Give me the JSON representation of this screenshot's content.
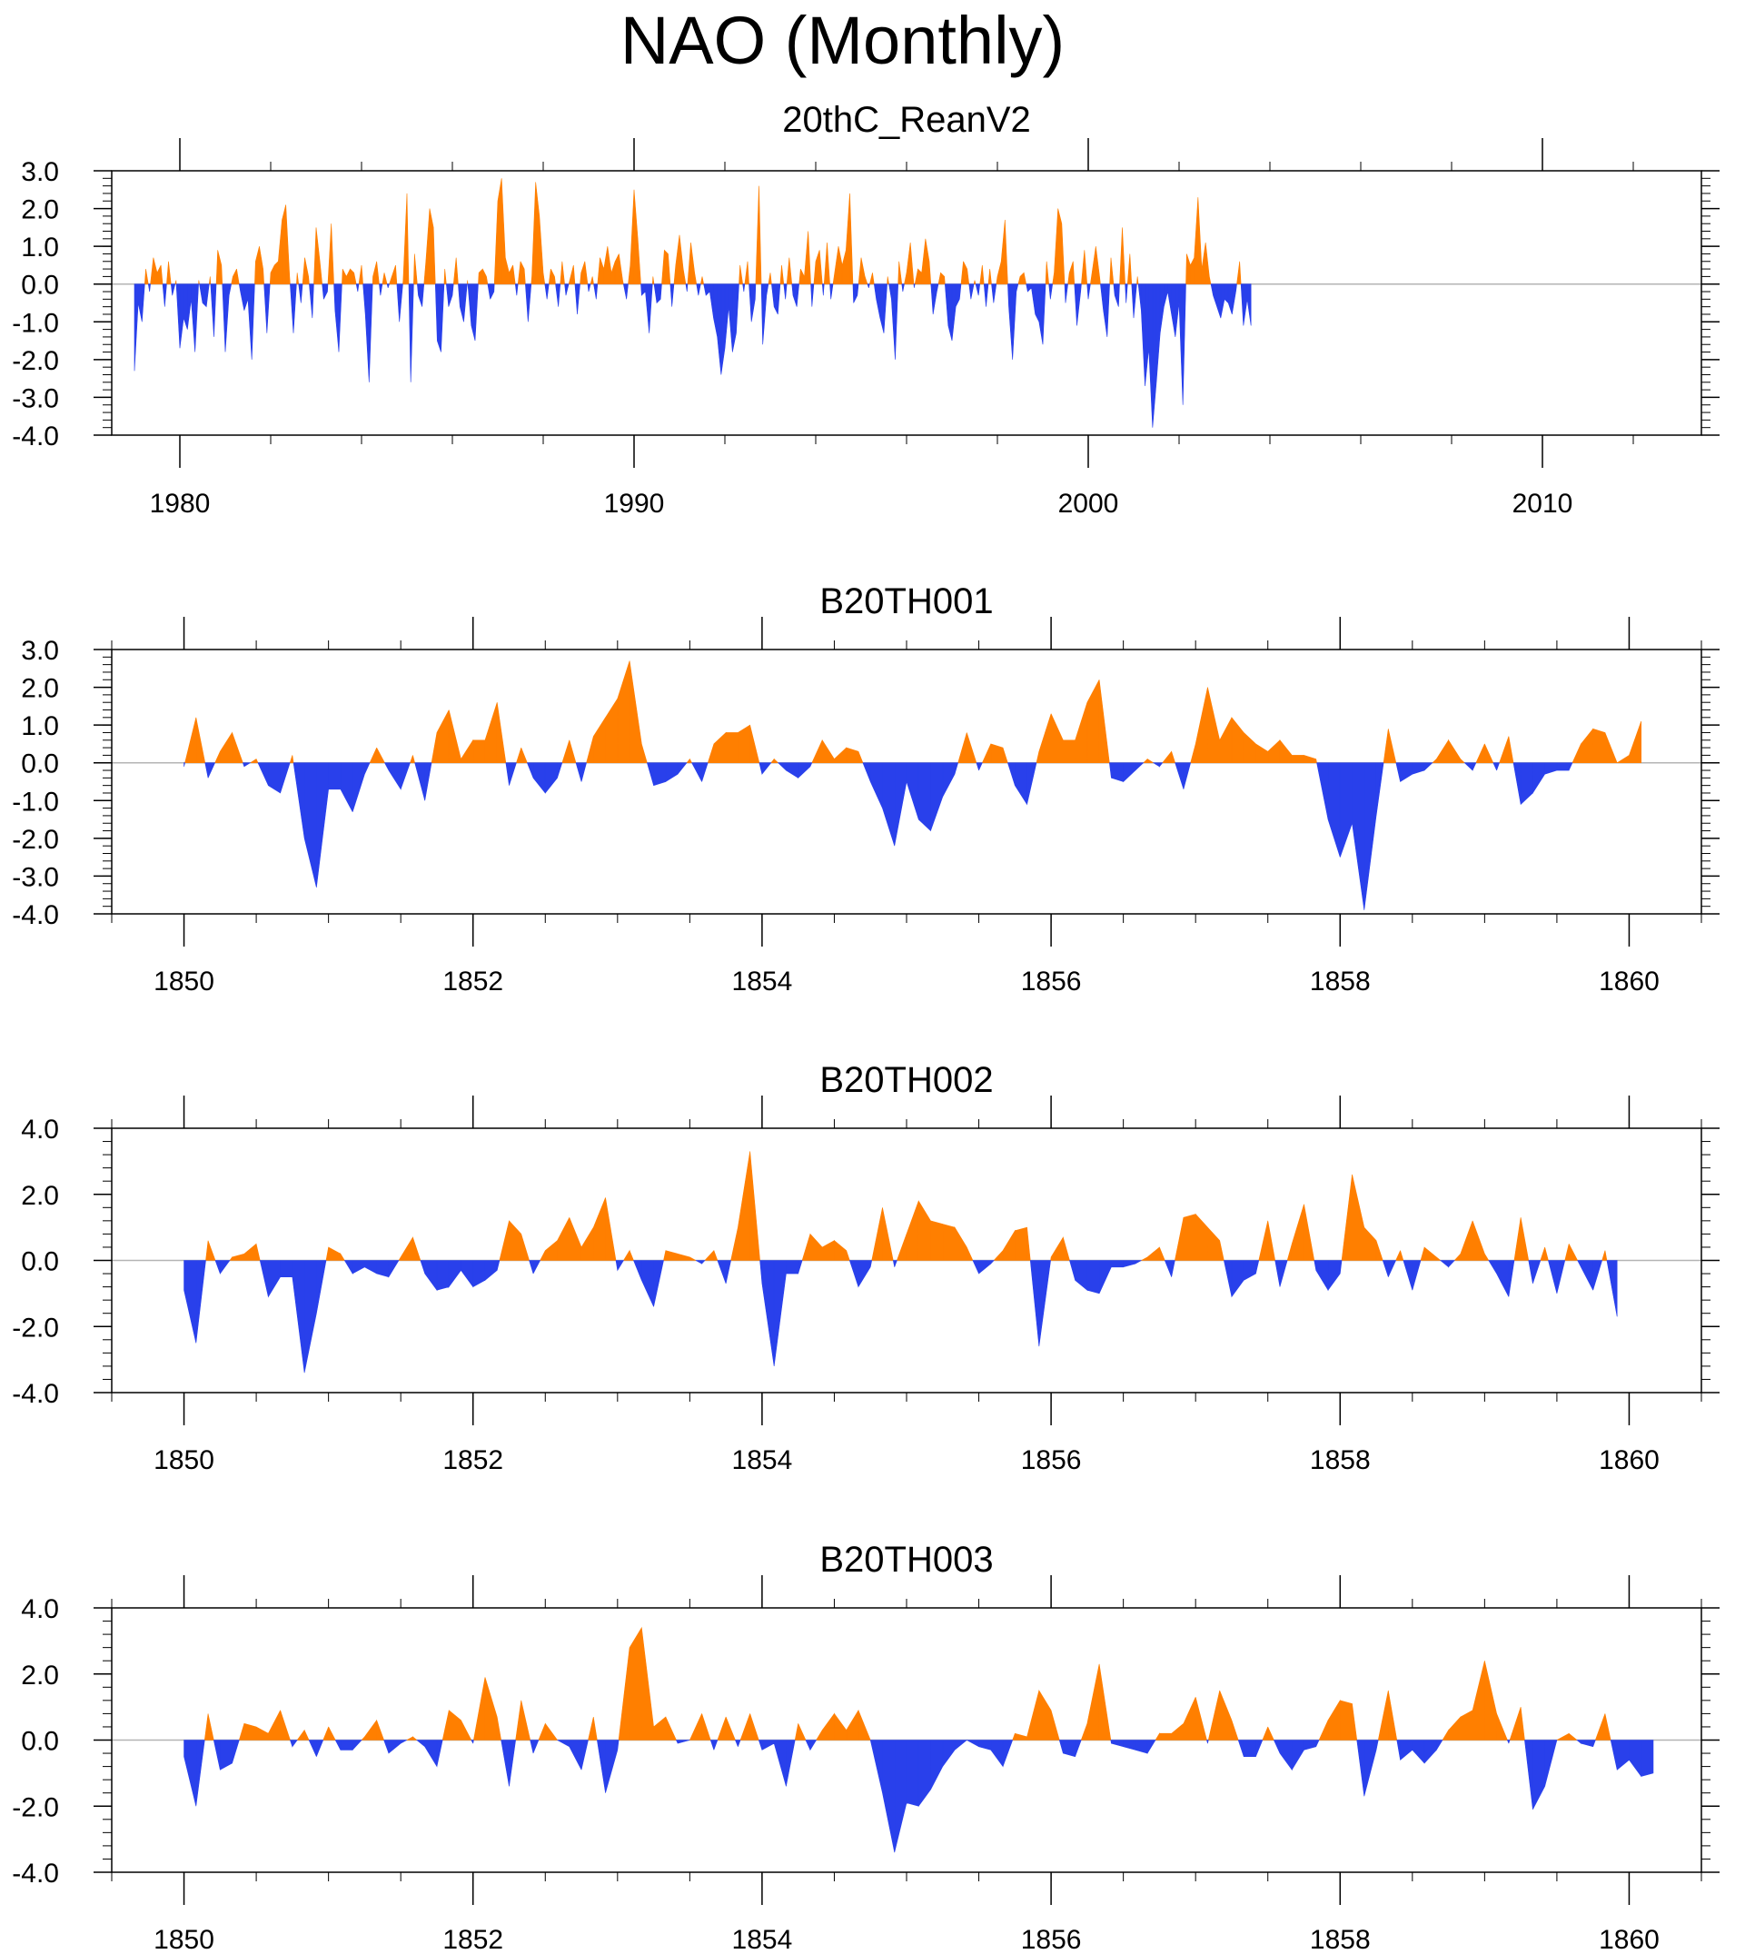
{
  "title": "NAO (Monthly)",
  "colors": {
    "positive": "#ff7f00",
    "negative": "#2940eb",
    "frame": "#000000",
    "zero_line": "#b4b4b4"
  },
  "chart_data": [
    {
      "type": "area",
      "title": "20thC_ReanV2",
      "xlim": [
        1978.5,
        2013.5
      ],
      "ylim": [
        -4,
        3
      ],
      "yticks": [
        3,
        2,
        1,
        0,
        -1,
        -2,
        -3,
        -4
      ],
      "ytick_labels": [
        "3.0",
        "2.0",
        "1.0",
        "0.0",
        "-1.0",
        "-2.0",
        "-3.0",
        "-4.0"
      ],
      "ytick_minor_step": 0.2,
      "xticks": [
        1980,
        1990,
        2000,
        2010
      ],
      "xtick_labels": [
        "1980",
        "1990",
        "2000",
        "2010"
      ],
      "xtick_minor_step": 2,
      "x_start": 1979.0,
      "x_step": 0.0833333,
      "values": [
        -2.3,
        -0.5,
        -1.0,
        0.4,
        -0.2,
        0.7,
        0.3,
        0.5,
        -0.6,
        0.6,
        -0.3,
        0.1,
        -1.7,
        -0.9,
        -1.2,
        -0.4,
        -1.8,
        0.1,
        -0.5,
        -0.6,
        0.2,
        -1.4,
        0.9,
        0.5,
        -1.8,
        -0.3,
        0.2,
        0.4,
        -0.2,
        -0.7,
        -0.4,
        -2.0,
        0.6,
        1.0,
        0.4,
        -1.3,
        0.3,
        0.5,
        0.6,
        1.7,
        2.1,
        0.2,
        -1.3,
        0.3,
        -0.5,
        0.7,
        0.2,
        -0.9,
        1.5,
        0.6,
        -0.4,
        -0.2,
        1.6,
        -0.7,
        -1.8,
        0.4,
        0.2,
        0.4,
        0.3,
        -0.2,
        0.5,
        -0.8,
        -2.6,
        0.2,
        0.6,
        -0.3,
        0.3,
        -0.1,
        0.2,
        0.5,
        -1.0,
        0.1,
        2.4,
        -2.6,
        0.8,
        -0.3,
        -0.6,
        0.6,
        2.0,
        1.5,
        -1.5,
        -1.8,
        0.4,
        -0.6,
        -0.3,
        0.7,
        -0.6,
        -1.0,
        0.1,
        -1.1,
        -1.5,
        0.3,
        0.4,
        0.2,
        -0.4,
        -0.2,
        2.2,
        2.8,
        0.7,
        0.3,
        0.5,
        -0.3,
        0.6,
        0.4,
        -1.0,
        0.2,
        2.7,
        1.8,
        0.3,
        -0.4,
        0.4,
        0.2,
        -0.6,
        0.6,
        -0.3,
        0.1,
        0.5,
        -0.8,
        0.3,
        0.6,
        -0.2,
        0.2,
        -0.4,
        0.7,
        0.4,
        1.0,
        0.3,
        0.6,
        0.8,
        0.1,
        -0.4,
        0.5,
        2.5,
        1.2,
        -0.3,
        -0.2,
        -1.3,
        0.2,
        -0.5,
        -0.4,
        0.9,
        0.8,
        -0.6,
        0.5,
        1.3,
        0.4,
        -0.2,
        1.1,
        0.3,
        -0.3,
        0.2,
        -0.3,
        -0.2,
        -0.9,
        -1.4,
        -2.4,
        -1.7,
        -0.6,
        -1.8,
        -1.3,
        0.5,
        -0.2,
        0.6,
        -1.0,
        -0.4,
        2.6,
        -1.6,
        -0.3,
        0.3,
        -0.6,
        -0.8,
        0.5,
        -0.4,
        0.7,
        -0.3,
        -0.6,
        0.4,
        0.2,
        1.4,
        -0.6,
        0.6,
        0.9,
        -0.3,
        1.1,
        -0.4,
        0.3,
        1.0,
        0.5,
        0.9,
        2.4,
        -0.5,
        -0.3,
        0.7,
        0.2,
        -0.1,
        0.3,
        -0.4,
        -0.9,
        -1.3,
        0.2,
        -0.4,
        -2.0,
        0.6,
        -0.2,
        0.3,
        1.1,
        -0.1,
        0.4,
        0.3,
        1.2,
        0.6,
        -0.8,
        -0.2,
        0.3,
        0.2,
        -1.1,
        -1.5,
        -0.6,
        -0.4,
        0.6,
        0.4,
        -0.4,
        0.1,
        -0.3,
        0.5,
        -0.6,
        0.4,
        -0.5,
        0.2,
        0.6,
        1.7,
        -0.6,
        -2.0,
        -0.2,
        0.2,
        0.3,
        -0.2,
        -0.1,
        -0.8,
        -1.0,
        -1.6,
        0.6,
        -0.4,
        0.3,
        2.0,
        1.6,
        -0.5,
        0.3,
        0.6,
        -1.1,
        -0.2,
        0.9,
        -0.4,
        0.3,
        1.0,
        0.2,
        -0.7,
        -1.4,
        0.7,
        -0.3,
        -0.6,
        1.5,
        -0.5,
        0.8,
        -0.9,
        0.2,
        -0.7,
        -2.7,
        -1.7,
        -3.8,
        -2.6,
        -1.3,
        -0.6,
        -0.2,
        -0.8,
        -1.4,
        -0.5,
        -3.2,
        0.8,
        0.5,
        0.7,
        2.3,
        0.4,
        1.1,
        0.2,
        -0.3,
        -0.6,
        -0.9,
        -0.4,
        -0.5,
        -0.8,
        -0.2,
        0.6,
        -1.1,
        -0.4,
        -1.1
      ]
    },
    {
      "type": "area",
      "title": "B20TH001",
      "xlim": [
        1849.5,
        1860.5
      ],
      "ylim": [
        -4,
        3
      ],
      "yticks": [
        3,
        2,
        1,
        0,
        -1,
        -2,
        -3,
        -4
      ],
      "ytick_labels": [
        "3.0",
        "2.0",
        "1.0",
        "0.0",
        "-1.0",
        "-2.0",
        "-3.0",
        "-4.0"
      ],
      "ytick_minor_step": 0.2,
      "xticks": [
        1850,
        1852,
        1854,
        1856,
        1858,
        1860
      ],
      "xtick_labels": [
        "1850",
        "1852",
        "1854",
        "1856",
        "1858",
        "1860"
      ],
      "xtick_minor_step": 0.5,
      "x_start": 1850.0,
      "x_step": 0.0833333,
      "values": [
        -0.1,
        1.2,
        -0.4,
        0.3,
        0.8,
        -0.1,
        0.1,
        -0.6,
        -0.8,
        0.2,
        -2.0,
        -3.3,
        -0.7,
        -0.7,
        -1.3,
        -0.3,
        0.4,
        -0.2,
        -0.7,
        0.2,
        -1.0,
        0.8,
        1.4,
        0.1,
        0.6,
        0.6,
        1.6,
        -0.6,
        0.4,
        -0.4,
        -0.8,
        -0.4,
        0.6,
        -0.5,
        0.7,
        1.2,
        1.7,
        2.7,
        0.5,
        -0.6,
        -0.5,
        -0.3,
        0.1,
        -0.5,
        0.5,
        0.8,
        0.8,
        1.0,
        -0.3,
        0.1,
        -0.2,
        -0.4,
        -0.1,
        0.6,
        0.1,
        0.4,
        0.3,
        -0.5,
        -1.2,
        -2.2,
        -0.5,
        -1.5,
        -1.8,
        -0.9,
        -0.3,
        0.8,
        -0.2,
        0.5,
        0.4,
        -0.6,
        -1.1,
        0.3,
        1.3,
        0.6,
        0.6,
        1.6,
        2.2,
        -0.4,
        -0.5,
        -0.2,
        0.1,
        -0.1,
        0.3,
        -0.7,
        0.5,
        2.0,
        0.6,
        1.2,
        0.8,
        0.5,
        0.3,
        0.6,
        0.2,
        0.2,
        0.1,
        -1.5,
        -2.5,
        -1.6,
        -3.9,
        -1.4,
        0.9,
        -0.5,
        -0.3,
        -0.2,
        0.1,
        0.6,
        0.1,
        -0.2,
        0.5,
        -0.2,
        0.7,
        -1.1,
        -0.8,
        -0.3,
        -0.2,
        -0.2,
        0.5,
        0.9,
        0.8,
        0.0,
        0.2,
        1.1
      ]
    },
    {
      "type": "area",
      "title": "B20TH002",
      "xlim": [
        1849.5,
        1860.5
      ],
      "ylim": [
        -4,
        4
      ],
      "yticks": [
        4,
        2,
        0,
        -2,
        -4
      ],
      "ytick_labels": [
        "4.0",
        "2.0",
        "0.0",
        "-2.0",
        "-4.0"
      ],
      "ytick_minor_step": 0.4,
      "xticks": [
        1850,
        1852,
        1854,
        1856,
        1858,
        1860
      ],
      "xtick_labels": [
        "1850",
        "1852",
        "1854",
        "1856",
        "1858",
        "1860"
      ],
      "xtick_minor_step": 0.5,
      "x_start": 1850.0,
      "x_step": 0.0833333,
      "values": [
        -0.9,
        -2.5,
        0.6,
        -0.4,
        0.1,
        0.2,
        0.5,
        -1.1,
        -0.5,
        -0.5,
        -3.4,
        -1.6,
        0.4,
        0.2,
        -0.4,
        -0.2,
        -0.4,
        -0.5,
        0.1,
        0.7,
        -0.4,
        -0.9,
        -0.8,
        -0.3,
        -0.8,
        -0.6,
        -0.3,
        1.2,
        0.8,
        -0.4,
        0.3,
        0.6,
        1.3,
        0.4,
        1.0,
        1.9,
        -0.3,
        0.3,
        -0.6,
        -1.4,
        0.3,
        0.2,
        0.1,
        -0.1,
        0.3,
        -0.7,
        1.0,
        3.3,
        -0.7,
        -3.2,
        -0.4,
        -0.4,
        0.8,
        0.4,
        0.6,
        0.3,
        -0.8,
        -0.2,
        1.6,
        -0.2,
        0.8,
        1.8,
        1.2,
        1.1,
        1.0,
        0.4,
        -0.4,
        -0.1,
        0.3,
        0.9,
        1.0,
        -2.6,
        0.1,
        0.7,
        -0.6,
        -0.9,
        -1.0,
        -0.2,
        -0.2,
        -0.1,
        0.1,
        0.4,
        -0.5,
        1.3,
        1.4,
        1.0,
        0.6,
        -1.1,
        -0.6,
        -0.4,
        1.2,
        -0.8,
        0.5,
        1.7,
        -0.3,
        -0.9,
        -0.4,
        2.6,
        1.0,
        0.6,
        -0.5,
        0.3,
        -0.9,
        0.4,
        0.1,
        -0.2,
        0.2,
        1.2,
        0.2,
        -0.4,
        -1.1,
        1.3,
        -0.7,
        0.4,
        -1.0,
        0.5,
        -0.2,
        -0.9,
        0.3,
        -1.7
      ]
    },
    {
      "type": "area",
      "title": "B20TH003",
      "xlim": [
        1849.5,
        1860.5
      ],
      "ylim": [
        -4,
        4
      ],
      "yticks": [
        4,
        2,
        0,
        -2,
        -4
      ],
      "ytick_labels": [
        "4.0",
        "2.0",
        "0.0",
        "-2.0",
        "-4.0"
      ],
      "ytick_minor_step": 0.4,
      "xticks": [
        1850,
        1852,
        1854,
        1856,
        1858,
        1860
      ],
      "xtick_labels": [
        "1850",
        "1852",
        "1854",
        "1856",
        "1858",
        "1860"
      ],
      "xtick_minor_step": 0.5,
      "x_start": 1850.0,
      "x_step": 0.0833333,
      "values": [
        -0.5,
        -2.0,
        0.8,
        -0.9,
        -0.7,
        0.5,
        0.4,
        0.2,
        0.9,
        -0.2,
        0.3,
        -0.5,
        0.4,
        -0.3,
        -0.3,
        0.1,
        0.6,
        -0.4,
        -0.1,
        0.1,
        -0.2,
        -0.8,
        0.9,
        0.6,
        -0.1,
        1.9,
        0.7,
        -1.4,
        1.2,
        -0.4,
        0.5,
        0.0,
        -0.2,
        -0.9,
        0.7,
        -1.6,
        -0.3,
        2.8,
        3.4,
        0.4,
        0.7,
        -0.1,
        0.0,
        0.8,
        -0.3,
        0.7,
        -0.2,
        0.8,
        -0.3,
        -0.1,
        -1.4,
        0.5,
        -0.3,
        0.3,
        0.8,
        0.3,
        0.9,
        0.0,
        -1.6,
        -3.4,
        -1.9,
        -2.0,
        -1.5,
        -0.8,
        -0.3,
        0.0,
        -0.2,
        -0.3,
        -0.8,
        0.2,
        0.1,
        1.5,
        0.9,
        -0.4,
        -0.5,
        0.5,
        2.3,
        -0.1,
        -0.2,
        -0.3,
        -0.4,
        0.2,
        0.2,
        0.5,
        1.3,
        -0.1,
        1.5,
        0.6,
        -0.5,
        -0.5,
        0.4,
        -0.4,
        -0.9,
        -0.3,
        -0.2,
        0.6,
        1.2,
        1.1,
        -1.7,
        -0.3,
        1.5,
        -0.6,
        -0.3,
        -0.7,
        -0.3,
        0.3,
        0.7,
        0.9,
        2.4,
        0.8,
        -0.1,
        1.0,
        -2.1,
        -1.4,
        0.0,
        0.2,
        -0.1,
        -0.2,
        0.8,
        -0.9,
        -0.6,
        -1.1,
        -1.0
      ]
    }
  ]
}
